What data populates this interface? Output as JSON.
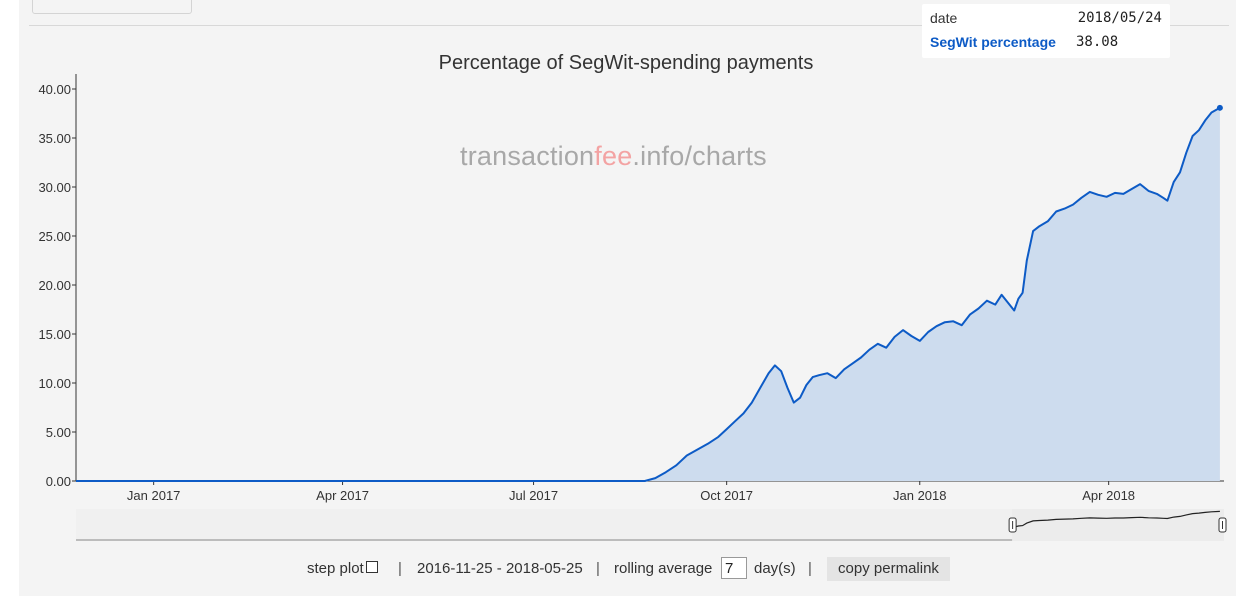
{
  "tooltip": {
    "date_label": "date",
    "date_value": "2018/05/24",
    "series_label": "SegWit percentage",
    "series_value": "38.08"
  },
  "watermark": {
    "part1": "transaction",
    "part2": "fee",
    "part3": ".info/charts"
  },
  "controls": {
    "step_plot_label": "step plot",
    "separator": "|",
    "date_range": "2016-11-25 - 2018-05-25",
    "rolling_average_label": "rolling average",
    "rolling_average_value": "7",
    "days_label": "day(s)",
    "copy_permalink_label": "copy permalink"
  },
  "colors": {
    "line": "#0d5bc6",
    "fill": "#cddcee",
    "background": "#f4f4f4"
  },
  "chart_data": {
    "type": "area",
    "title": "Percentage of SegWit-spending payments",
    "xlabel": "",
    "ylabel": "",
    "x_start": "2016-11-25",
    "x_end": "2018-05-25",
    "x_ticks": [
      "Jan 2017",
      "Apr 2017",
      "Jul 2017",
      "Oct 2017",
      "Jan 2018",
      "Apr 2018"
    ],
    "x_tick_dates": [
      "2017-01-01",
      "2017-04-01",
      "2017-07-01",
      "2017-10-01",
      "2018-01-01",
      "2018-04-01"
    ],
    "y_ticks": [
      "0.00",
      "5.00",
      "10.00",
      "15.00",
      "20.00",
      "25.00",
      "30.00",
      "35.00",
      "40.00"
    ],
    "ylim": [
      0,
      40
    ],
    "grid": false,
    "series": [
      {
        "name": "SegWit percentage",
        "points": [
          [
            "2016-11-25",
            0
          ],
          [
            "2017-08-23",
            0
          ],
          [
            "2017-08-28",
            0.3
          ],
          [
            "2017-09-02",
            0.9
          ],
          [
            "2017-09-07",
            1.6
          ],
          [
            "2017-09-12",
            2.6
          ],
          [
            "2017-09-17",
            3.2
          ],
          [
            "2017-09-22",
            3.8
          ],
          [
            "2017-09-27",
            4.5
          ],
          [
            "2017-10-01",
            5.3
          ],
          [
            "2017-10-05",
            6.1
          ],
          [
            "2017-10-09",
            6.9
          ],
          [
            "2017-10-13",
            8.0
          ],
          [
            "2017-10-17",
            9.5
          ],
          [
            "2017-10-21",
            11.0
          ],
          [
            "2017-10-24",
            11.8
          ],
          [
            "2017-10-27",
            11.2
          ],
          [
            "2017-10-30",
            9.5
          ],
          [
            "2017-11-02",
            8.0
          ],
          [
            "2017-11-05",
            8.5
          ],
          [
            "2017-11-08",
            9.8
          ],
          [
            "2017-11-11",
            10.6
          ],
          [
            "2017-11-14",
            10.8
          ],
          [
            "2017-11-18",
            11.0
          ],
          [
            "2017-11-22",
            10.5
          ],
          [
            "2017-11-26",
            11.4
          ],
          [
            "2017-11-30",
            12.0
          ],
          [
            "2017-12-04",
            12.6
          ],
          [
            "2017-12-08",
            13.4
          ],
          [
            "2017-12-12",
            14.0
          ],
          [
            "2017-12-16",
            13.6
          ],
          [
            "2017-12-20",
            14.7
          ],
          [
            "2017-12-24",
            15.4
          ],
          [
            "2017-12-28",
            14.8
          ],
          [
            "2018-01-01",
            14.3
          ],
          [
            "2018-01-05",
            15.2
          ],
          [
            "2018-01-09",
            15.8
          ],
          [
            "2018-01-13",
            16.2
          ],
          [
            "2018-01-17",
            16.3
          ],
          [
            "2018-01-21",
            15.9
          ],
          [
            "2018-01-25",
            17.0
          ],
          [
            "2018-01-29",
            17.6
          ],
          [
            "2018-02-02",
            18.4
          ],
          [
            "2018-02-06",
            18.0
          ],
          [
            "2018-02-09",
            19.0
          ],
          [
            "2018-02-12",
            18.2
          ],
          [
            "2018-02-15",
            17.4
          ],
          [
            "2018-02-17",
            18.6
          ],
          [
            "2018-02-19",
            19.2
          ],
          [
            "2018-02-21",
            22.5
          ],
          [
            "2018-02-24",
            25.5
          ],
          [
            "2018-02-27",
            26.0
          ],
          [
            "2018-03-03",
            26.5
          ],
          [
            "2018-03-07",
            27.5
          ],
          [
            "2018-03-11",
            27.8
          ],
          [
            "2018-03-15",
            28.2
          ],
          [
            "2018-03-19",
            28.9
          ],
          [
            "2018-03-23",
            29.5
          ],
          [
            "2018-03-27",
            29.2
          ],
          [
            "2018-03-31",
            29.0
          ],
          [
            "2018-04-04",
            29.4
          ],
          [
            "2018-04-08",
            29.3
          ],
          [
            "2018-04-12",
            29.8
          ],
          [
            "2018-04-16",
            30.3
          ],
          [
            "2018-04-20",
            29.6
          ],
          [
            "2018-04-24",
            29.3
          ],
          [
            "2018-04-27",
            28.9
          ],
          [
            "2018-04-29",
            28.6
          ],
          [
            "2018-05-02",
            30.5
          ],
          [
            "2018-05-05",
            31.5
          ],
          [
            "2018-05-08",
            33.5
          ],
          [
            "2018-05-11",
            35.2
          ],
          [
            "2018-05-14",
            35.8
          ],
          [
            "2018-05-17",
            36.8
          ],
          [
            "2018-05-20",
            37.6
          ],
          [
            "2018-05-24",
            38.08
          ]
        ]
      }
    ]
  }
}
